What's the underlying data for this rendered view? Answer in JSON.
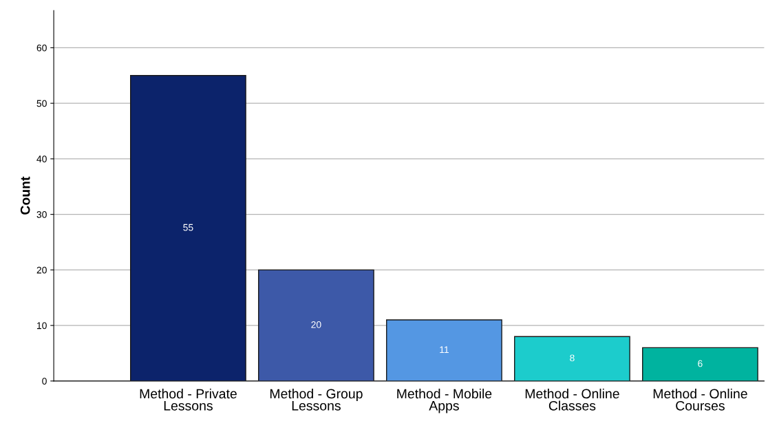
{
  "chart_data": {
    "type": "bar",
    "ylabel": "Count",
    "categories": [
      "Method - Private Lessons",
      "Method - Group Lessons",
      "Method - Mobile Apps",
      "Method - Online Classes",
      "Method - Online Courses"
    ],
    "values": [
      55,
      20,
      11,
      8,
      6
    ],
    "colors": [
      "#0c236b",
      "#3d59a8",
      "#5497e3",
      "#1ccccc",
      "#00b39f"
    ],
    "ylim": [
      0,
      66.7
    ],
    "yticks": [
      0,
      10,
      20,
      30,
      40,
      50,
      60
    ],
    "grid": "y",
    "data_labels": true
  }
}
